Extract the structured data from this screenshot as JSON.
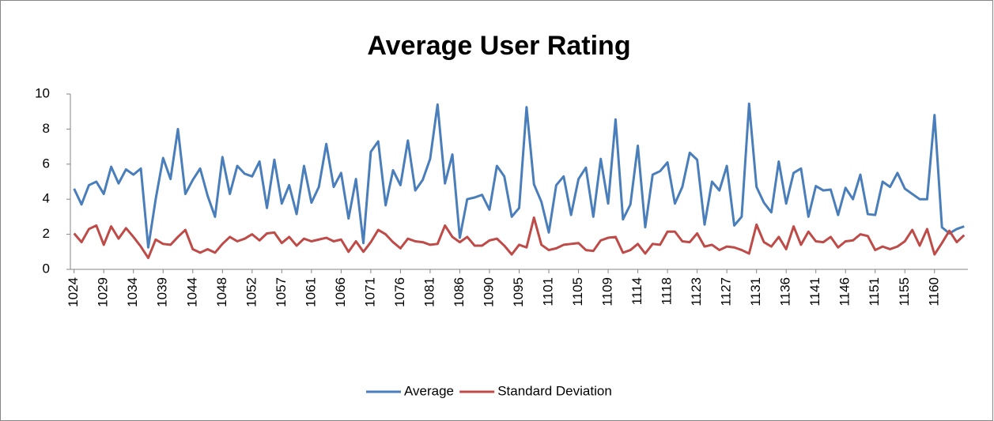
{
  "chart_data": {
    "type": "line",
    "title": "Average User Rating",
    "categories": [
      "1024",
      null,
      null,
      null,
      "1029",
      null,
      null,
      null,
      "1034",
      null,
      null,
      null,
      "1039",
      null,
      null,
      null,
      "1044",
      null,
      null,
      null,
      "1048",
      null,
      null,
      null,
      "1052",
      null,
      null,
      null,
      "1057",
      null,
      null,
      null,
      "1061",
      null,
      null,
      null,
      "1066",
      null,
      null,
      null,
      "1071",
      null,
      null,
      null,
      "1076",
      null,
      null,
      null,
      "1081",
      null,
      null,
      null,
      "1086",
      null,
      null,
      null,
      "1090",
      null,
      null,
      null,
      "1095",
      null,
      null,
      null,
      "1101",
      null,
      null,
      null,
      "1105",
      null,
      null,
      null,
      "1109",
      null,
      null,
      null,
      "1114",
      null,
      null,
      null,
      "1118",
      null,
      null,
      null,
      "1123",
      null,
      null,
      null,
      "1127",
      null,
      null,
      null,
      "1131",
      null,
      null,
      null,
      "1136",
      null,
      null,
      null,
      "1141",
      null,
      null,
      null,
      "1146",
      null,
      null,
      null,
      "1151",
      null,
      null,
      null,
      "1155",
      null,
      null,
      null,
      "1160",
      null,
      null,
      null,
      null
    ],
    "series": [
      {
        "name": "Average",
        "color": "#4a7ebb",
        "values": [
          4.6,
          3.7,
          4.8,
          5.0,
          4.3,
          5.85,
          4.9,
          5.7,
          5.4,
          5.75,
          1.25,
          4.0,
          6.35,
          5.15,
          8.0,
          4.3,
          5.1,
          5.75,
          4.2,
          3.0,
          6.4,
          4.3,
          5.9,
          5.45,
          5.3,
          6.15,
          3.5,
          6.25,
          3.75,
          4.8,
          3.15,
          5.9,
          3.8,
          4.7,
          7.15,
          4.7,
          5.5,
          2.9,
          5.15,
          1.5,
          6.7,
          7.3,
          3.65,
          5.65,
          4.8,
          7.35,
          4.5,
          5.1,
          6.3,
          9.4,
          4.9,
          6.55,
          1.8,
          4.0,
          4.1,
          4.25,
          3.4,
          5.9,
          5.3,
          3.0,
          3.5,
          9.25,
          4.85,
          3.85,
          2.1,
          4.8,
          5.3,
          3.1,
          5.15,
          5.8,
          3.0,
          6.3,
          3.75,
          8.55,
          2.85,
          3.7,
          7.05,
          2.4,
          5.4,
          5.6,
          6.1,
          3.75,
          4.7,
          6.65,
          6.25,
          2.55,
          5.0,
          4.5,
          5.9,
          2.5,
          3.0,
          9.45,
          4.7,
          3.8,
          3.25,
          6.15,
          3.75,
          5.5,
          5.75,
          3.0,
          4.75,
          4.5,
          4.55,
          3.1,
          4.65,
          4.0,
          5.4,
          3.15,
          3.1,
          5.0,
          4.7,
          5.5,
          4.6,
          4.3,
          4.0,
          4.0,
          8.8,
          2.4,
          2.05,
          2.3,
          2.45
        ]
      },
      {
        "name": "Standard Deviation",
        "color": "#be4b48",
        "values": [
          2.05,
          1.55,
          2.3,
          2.5,
          1.4,
          2.45,
          1.75,
          2.35,
          1.85,
          1.3,
          0.65,
          1.7,
          1.45,
          1.4,
          1.85,
          2.25,
          1.15,
          0.95,
          1.15,
          0.95,
          1.45,
          1.85,
          1.6,
          1.75,
          2.0,
          1.65,
          2.05,
          2.1,
          1.5,
          1.85,
          1.35,
          1.75,
          1.6,
          1.7,
          1.8,
          1.6,
          1.7,
          1.0,
          1.6,
          1.0,
          1.55,
          2.25,
          2.0,
          1.55,
          1.2,
          1.75,
          1.6,
          1.55,
          1.4,
          1.45,
          2.5,
          1.85,
          1.55,
          1.85,
          1.35,
          1.35,
          1.65,
          1.75,
          1.35,
          0.85,
          1.4,
          1.25,
          2.95,
          1.4,
          1.1,
          1.2,
          1.4,
          1.45,
          1.5,
          1.1,
          1.05,
          1.65,
          1.8,
          1.85,
          0.95,
          1.1,
          1.45,
          0.9,
          1.45,
          1.4,
          2.15,
          2.15,
          1.6,
          1.55,
          2.05,
          1.3,
          1.4,
          1.1,
          1.3,
          1.25,
          1.1,
          0.9,
          2.55,
          1.55,
          1.3,
          1.85,
          1.15,
          2.45,
          1.4,
          2.15,
          1.6,
          1.55,
          1.85,
          1.25,
          1.6,
          1.65,
          2.0,
          1.9,
          1.1,
          1.3,
          1.15,
          1.3,
          1.6,
          2.25,
          1.35,
          2.3,
          0.85,
          1.5,
          2.2,
          1.55,
          1.95
        ]
      }
    ],
    "ylim": [
      0,
      10
    ],
    "yticks": [
      0,
      2,
      4,
      6,
      8,
      10
    ],
    "grid": false,
    "legend": "bottom"
  }
}
